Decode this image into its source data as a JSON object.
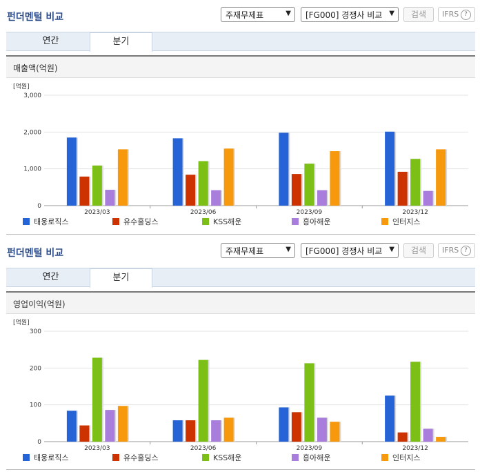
{
  "panels": [
    {
      "header": {
        "title": "펀더멘털 비교",
        "select1": "주재무제표",
        "select2": "[FG000] 경쟁사 비교",
        "search_label": "검색",
        "ifrs_label": "IFRS",
        "help_symbol": "?"
      },
      "tabs": [
        {
          "label": "연간"
        },
        {
          "label": "분기"
        }
      ],
      "active_tab": 1,
      "chart_title": "매출액(억원)",
      "chart_data": {
        "type": "bar",
        "unit": "[억원]",
        "categories": [
          "2023/03",
          "2023/06",
          "2023/09",
          "2023/12"
        ],
        "ylim": [
          0,
          3000
        ],
        "yticks": [
          "0",
          "1,000",
          "2,000",
          "3,000"
        ],
        "yvalues": [
          0,
          1000,
          2000,
          3000
        ],
        "series": [
          {
            "name": "태웅로직스",
            "color": "#2563d6",
            "values": [
              1850,
              1830,
              1980,
              2010
            ]
          },
          {
            "name": "유수홀딩스",
            "color": "#cc3300",
            "values": [
              790,
              840,
              860,
              920
            ]
          },
          {
            "name": "KSS해운",
            "color": "#7cbf17",
            "values": [
              1090,
              1210,
              1140,
              1270
            ]
          },
          {
            "name": "흥아해운",
            "color": "#a87ddb",
            "values": [
              430,
              420,
              420,
              400
            ]
          },
          {
            "name": "인터지스",
            "color": "#f7990c",
            "values": [
              1530,
              1550,
              1480,
              1530
            ]
          }
        ]
      }
    },
    {
      "header": {
        "title": "펀더멘털 비교",
        "select1": "주재무제표",
        "select2": "[FG000] 경쟁사 비교",
        "search_label": "검색",
        "ifrs_label": "IFRS",
        "help_symbol": "?"
      },
      "tabs": [
        {
          "label": "연간"
        },
        {
          "label": "분기"
        }
      ],
      "active_tab": 1,
      "chart_title": "영업이익(억원)",
      "chart_data": {
        "type": "bar",
        "unit": "[억원]",
        "categories": [
          "2023/03",
          "2023/06",
          "2023/09",
          "2023/12"
        ],
        "ylim": [
          0,
          300
        ],
        "yticks": [
          "0",
          "100",
          "200",
          "300"
        ],
        "yvalues": [
          0,
          100,
          200,
          300
        ],
        "series": [
          {
            "name": "태웅로직스",
            "color": "#2563d6",
            "values": [
              84,
              58,
              93,
              125
            ]
          },
          {
            "name": "유수홀딩스",
            "color": "#cc3300",
            "values": [
              44,
              58,
              80,
              25
            ]
          },
          {
            "name": "KSS해운",
            "color": "#7cbf17",
            "values": [
              228,
              222,
              213,
              217
            ]
          },
          {
            "name": "흥아해운",
            "color": "#a87ddb",
            "values": [
              86,
              58,
              65,
              35
            ]
          },
          {
            "name": "인터지스",
            "color": "#f7990c",
            "values": [
              97,
              65,
              54,
              13
            ]
          }
        ]
      }
    }
  ]
}
